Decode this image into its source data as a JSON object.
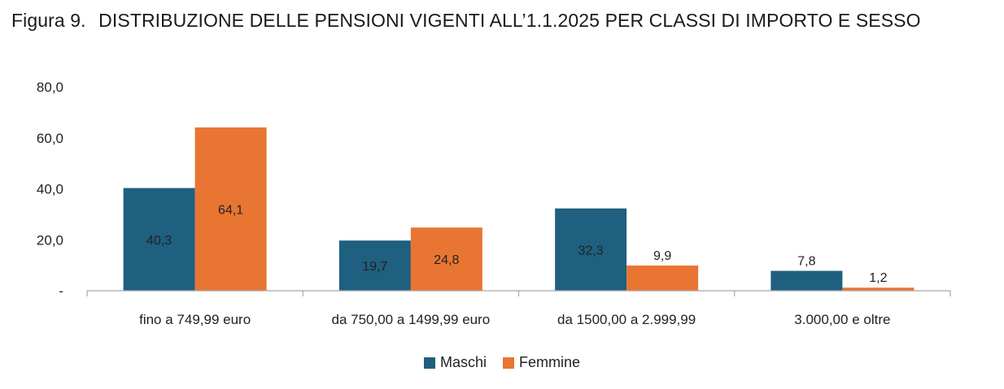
{
  "title": {
    "number": "Figura 9.",
    "text": "DISTRIBUZIONE DELLE PENSIONI VIGENTI ALL’1.1.2025 PER CLASSI DI IMPORTO E SESSO"
  },
  "colors": {
    "maschi": "#1f5f7f",
    "femmine": "#e97532",
    "axis": "#a6a6a6"
  },
  "chart_data": {
    "type": "bar",
    "categories": [
      "fino a 749,99 euro",
      "da 750,00 a 1499,99 euro",
      "da 1500,00 a 2.999,99",
      "3.000,00 e oltre"
    ],
    "series": [
      {
        "name": "Maschi",
        "values": [
          40.3,
          19.7,
          32.3,
          7.8
        ],
        "labels": [
          "40,3",
          "19,7",
          "32,3",
          "7,8"
        ]
      },
      {
        "name": "Femmine",
        "values": [
          64.1,
          24.8,
          9.9,
          1.2
        ],
        "labels": [
          "64,1",
          "24,8",
          "9,9",
          "1,2"
        ]
      }
    ],
    "ylim": [
      0,
      80
    ],
    "yticks": [
      0,
      20,
      40,
      60,
      80
    ],
    "ytick_labels": [
      "-",
      "20,0",
      "40,0",
      "60,0",
      "80,0"
    ],
    "grid": false,
    "legend_position": "bottom-center"
  }
}
